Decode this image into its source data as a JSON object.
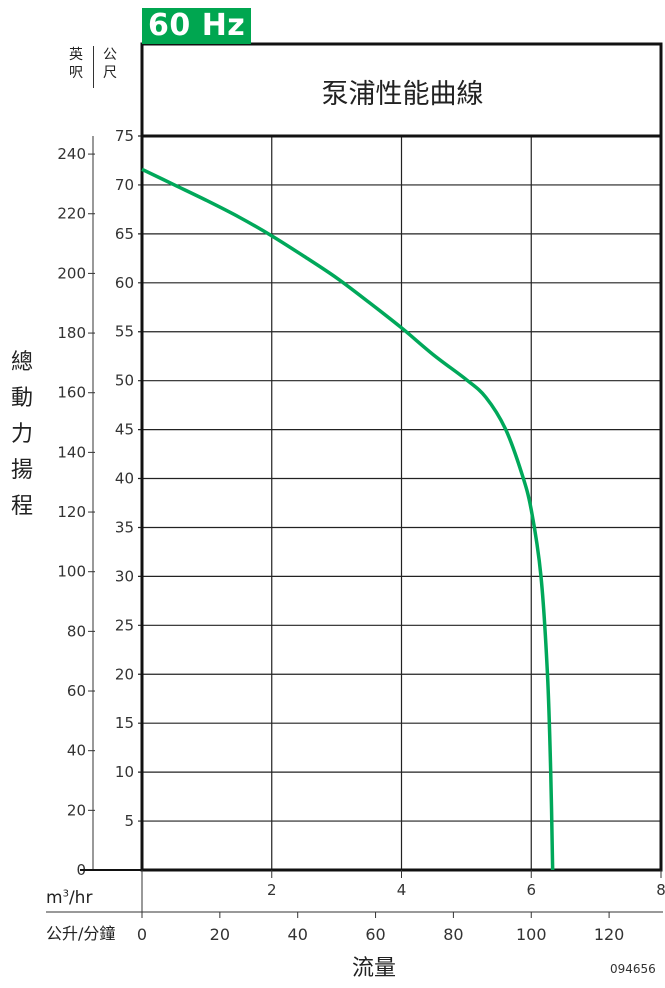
{
  "badge": "60 Hz",
  "code": "094656",
  "chart_data": {
    "type": "line",
    "title": "泵浦性能曲線",
    "ylabel": "總動力揚程",
    "xlabel": "流量",
    "y_unit_ft": "英呎",
    "y_unit_m": "公尺",
    "x_unit_m3": "m3/hr",
    "x_unit_lpm": "公升/分鐘",
    "ylim_m": [
      0,
      75
    ],
    "yticks_m": [
      5,
      10,
      15,
      20,
      25,
      30,
      35,
      40,
      45,
      50,
      55,
      60,
      65,
      70,
      75
    ],
    "yticks_ft": [
      0,
      20,
      40,
      60,
      80,
      100,
      120,
      140,
      160,
      180,
      200,
      220,
      240
    ],
    "xlim_m3": [
      0,
      8
    ],
    "xticks_m3": [
      2,
      4,
      6,
      8
    ],
    "xticks_lpm": [
      0,
      20,
      40,
      60,
      80,
      100,
      120
    ],
    "grid": true,
    "color": "#00a85a",
    "series": [
      {
        "x_m3hr": [
          0,
          0.5,
          1.0,
          1.5,
          2.0,
          2.5,
          3.0,
          3.5,
          4.0,
          4.5,
          5.0,
          5.3,
          5.6,
          5.85,
          6.0,
          6.15,
          6.25,
          6.3,
          6.33
        ],
        "y_m": [
          71.6,
          70.0,
          68.4,
          66.7,
          64.8,
          62.7,
          60.5,
          58.0,
          55.4,
          52.6,
          50.1,
          48.3,
          45.1,
          40.6,
          36.8,
          30.0,
          20.0,
          10.0,
          0
        ]
      }
    ]
  }
}
